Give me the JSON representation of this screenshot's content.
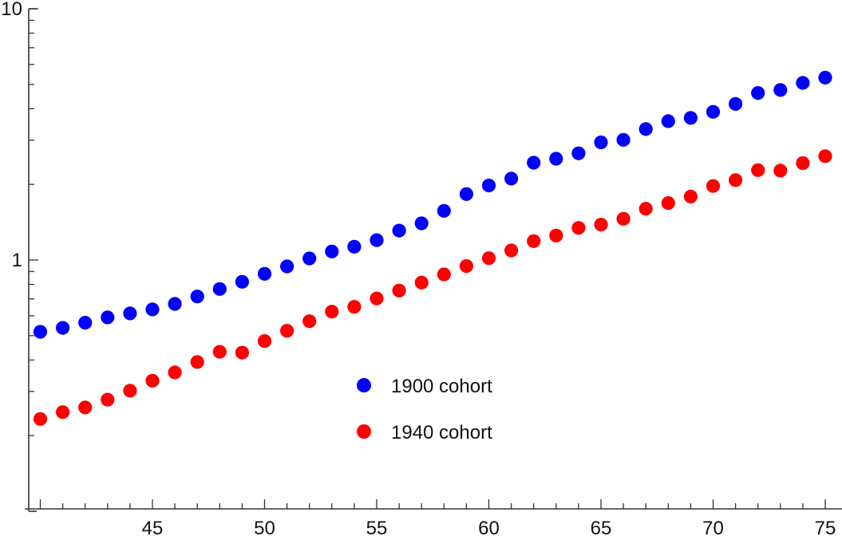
{
  "chart_data": {
    "type": "scatter",
    "title": "",
    "xlabel": "",
    "ylabel": "",
    "yscale": "log",
    "xlim": [
      39.5,
      75.7
    ],
    "ylim": [
      0.1,
      10
    ],
    "grid": false,
    "legend_position": "inside-lower-center",
    "x_ticks_major": [
      45,
      50,
      55,
      60,
      65,
      70,
      75
    ],
    "x_tick_labels": [
      "45",
      "50",
      "55",
      "60",
      "65",
      "70",
      "75"
    ],
    "y_ticks_major": [
      1,
      10
    ],
    "y_tick_labels": [
      "1",
      "10"
    ],
    "x": [
      40,
      41,
      42,
      43,
      44,
      45,
      46,
      47,
      48,
      49,
      50,
      51,
      52,
      53,
      54,
      55,
      56,
      57,
      58,
      59,
      60,
      61,
      62,
      63,
      64,
      65,
      66,
      67,
      68,
      69,
      70,
      71,
      72,
      73,
      74,
      75
    ],
    "series": [
      {
        "name": "1900 cohort",
        "color": "#0000ff",
        "values": [
          0.518,
          0.537,
          0.563,
          0.591,
          0.613,
          0.636,
          0.669,
          0.716,
          0.767,
          0.819,
          0.881,
          0.943,
          1.015,
          1.081,
          1.13,
          1.2,
          1.31,
          1.4,
          1.57,
          1.83,
          1.98,
          2.11,
          2.44,
          2.53,
          2.66,
          2.94,
          3.01,
          3.32,
          3.57,
          3.68,
          3.89,
          4.18,
          4.62,
          4.75,
          5.07,
          5.32
        ]
      },
      {
        "name": "1940 cohort",
        "color": "#ff0000",
        "values": [
          0.233,
          0.248,
          0.259,
          0.278,
          0.302,
          0.331,
          0.357,
          0.393,
          0.431,
          0.428,
          0.476,
          0.523,
          0.571,
          0.623,
          0.651,
          0.703,
          0.756,
          0.813,
          0.877,
          0.946,
          1.017,
          1.092,
          1.189,
          1.252,
          1.343,
          1.383,
          1.459,
          1.6,
          1.685,
          1.79,
          1.97,
          2.08,
          2.28,
          2.27,
          2.43,
          2.59
        ]
      }
    ]
  },
  "legend": {
    "items": [
      {
        "label": "1900 cohort",
        "color": "#0000ff"
      },
      {
        "label": "1940 cohort",
        "color": "#ff0000"
      }
    ]
  }
}
